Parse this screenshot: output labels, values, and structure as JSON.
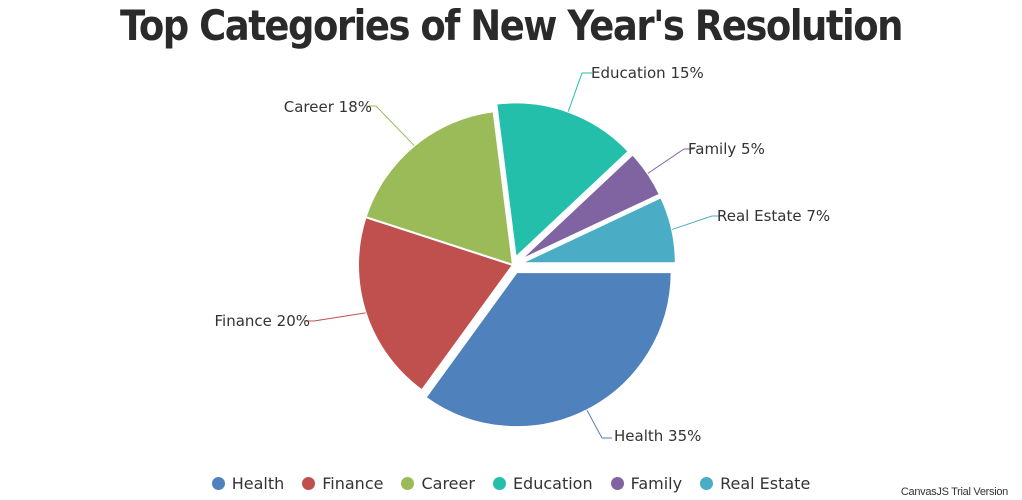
{
  "chart_data": {
    "type": "pie",
    "title": "Top Categories of New Year's Resolution",
    "slices": [
      {
        "name": "Health",
        "value": 35,
        "label": "Health 35%",
        "color": "#4F81BC",
        "exploded": true
      },
      {
        "name": "Finance",
        "value": 20,
        "label": "Finance 20%",
        "color": "#C0504E",
        "exploded": false
      },
      {
        "name": "Career",
        "value": 18,
        "label": "Career 18%",
        "color": "#9BBB58",
        "exploded": false
      },
      {
        "name": "Education",
        "value": 15,
        "label": "Education 15%",
        "color": "#23BFAA",
        "exploded": true
      },
      {
        "name": "Family",
        "value": 5,
        "label": "Family 5%",
        "color": "#8064A1",
        "exploded": true
      },
      {
        "name": "Real Estate",
        "value": 7,
        "label": "Real Estate 7%",
        "color": "#4AACC5",
        "exploded": true
      }
    ],
    "legend_position": "bottom"
  },
  "credit": "CanvasJS Trial Version"
}
